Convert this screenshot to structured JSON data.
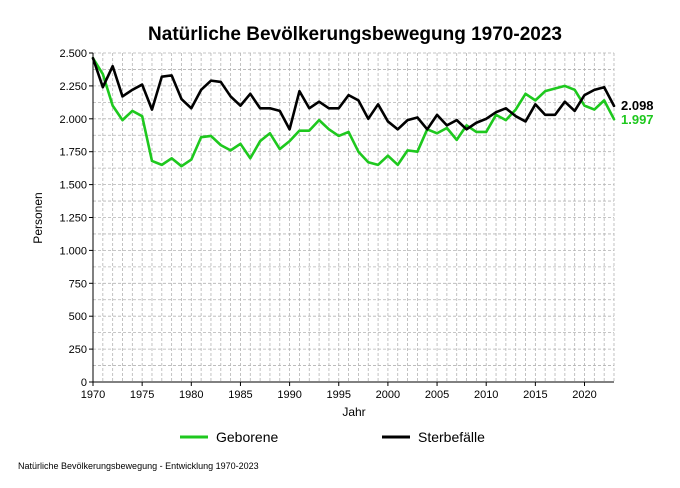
{
  "chart_data": {
    "type": "line",
    "title": "Natürliche Bevölkerungsbewegung 1970-2023",
    "xlabel": "Jahr",
    "ylabel": "Personen",
    "xlim": [
      1970,
      2023
    ],
    "ylim": [
      0,
      2500
    ],
    "x_ticks": [
      1970,
      1975,
      1980,
      1985,
      1990,
      1995,
      2000,
      2005,
      2010,
      2015,
      2020
    ],
    "y_ticks": [
      0,
      250,
      500,
      750,
      1000,
      1250,
      1500,
      1750,
      2000,
      2250,
      2500
    ],
    "y_tick_labels": [
      "0",
      "250",
      "500",
      "750",
      "1.000",
      "1.250",
      "1.500",
      "1.750",
      "2.000",
      "2.250",
      "2.500"
    ],
    "grid": true,
    "legend_position": "bottom",
    "x": [
      1970,
      1971,
      1972,
      1973,
      1974,
      1975,
      1976,
      1977,
      1978,
      1979,
      1980,
      1981,
      1982,
      1983,
      1984,
      1985,
      1986,
      1987,
      1988,
      1989,
      1990,
      1991,
      1992,
      1993,
      1994,
      1995,
      1996,
      1997,
      1998,
      1999,
      2000,
      2001,
      2002,
      2003,
      2004,
      2005,
      2006,
      2007,
      2008,
      2009,
      2010,
      2011,
      2012,
      2013,
      2014,
      2015,
      2016,
      2017,
      2018,
      2019,
      2020,
      2021,
      2022,
      2023
    ],
    "series": [
      {
        "name": "Geborene",
        "color": "#1ec81e",
        "end_label": "1.997",
        "values": [
          2460,
          2340,
          2100,
          1990,
          2060,
          2020,
          1680,
          1650,
          1700,
          1640,
          1690,
          1860,
          1870,
          1800,
          1760,
          1810,
          1700,
          1830,
          1890,
          1770,
          1830,
          1910,
          1910,
          1990,
          1920,
          1870,
          1900,
          1750,
          1670,
          1650,
          1720,
          1650,
          1760,
          1750,
          1920,
          1890,
          1930,
          1840,
          1950,
          1900,
          1900,
          2030,
          1990,
          2070,
          2190,
          2140,
          2210,
          2230,
          2250,
          2220,
          2100,
          2070,
          2140,
          1997
        ]
      },
      {
        "name": "Sterbefälle",
        "color": "#000000",
        "end_label": "2.098",
        "values": [
          2460,
          2240,
          2400,
          2170,
          2220,
          2260,
          2070,
          2320,
          2330,
          2150,
          2080,
          2220,
          2290,
          2280,
          2170,
          2100,
          2190,
          2080,
          2080,
          2060,
          1920,
          2210,
          2080,
          2130,
          2080,
          2080,
          2180,
          2140,
          2000,
          2110,
          1980,
          1920,
          1990,
          2010,
          1920,
          2030,
          1950,
          1990,
          1920,
          1970,
          2000,
          2050,
          2080,
          2020,
          1980,
          2110,
          2030,
          2030,
          2130,
          2060,
          2180,
          2220,
          2240,
          2098
        ]
      }
    ]
  },
  "footnote": "Natürliche Bevölkerungsbewegung - Entwicklung 1970-2023"
}
